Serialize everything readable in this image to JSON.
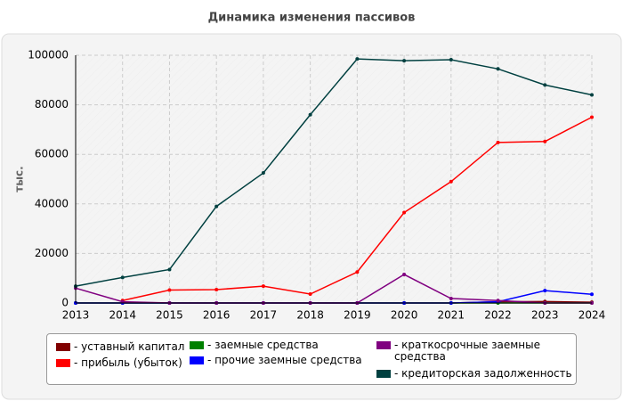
{
  "chart_data": {
    "type": "line",
    "title": "Динамика изменения пассивов",
    "y_label": "тыс.",
    "categories": [
      "2013",
      "2014",
      "2015",
      "2016",
      "2017",
      "2018",
      "2019",
      "2020",
      "2021",
      "2022",
      "2023",
      "2024"
    ],
    "ylim": [
      0,
      100000
    ],
    "yticks": [
      0,
      20000,
      40000,
      60000,
      80000,
      100000
    ],
    "grid": true,
    "series": [
      {
        "name": "уставный капитал",
        "color": "#800000",
        "values": [
          10,
          10,
          10,
          10,
          10,
          10,
          10,
          10,
          10,
          500,
          600,
          300
        ]
      },
      {
        "name": "прибыль (убыток)",
        "color": "#ff0000",
        "values": [
          null,
          1000,
          5200,
          5400,
          6800,
          3600,
          12500,
          36500,
          49000,
          64800,
          65200,
          75000
        ]
      },
      {
        "name": "заемные средства",
        "color": "#008000",
        "values": [
          0,
          0,
          0,
          0,
          0,
          0,
          0,
          0,
          0,
          0,
          0,
          0
        ]
      },
      {
        "name": "прочие заемные средства",
        "color": "#0000ff",
        "values": [
          0,
          0,
          0,
          0,
          0,
          0,
          0,
          0,
          0,
          500,
          5000,
          3500
        ]
      },
      {
        "name": "краткосрочные заемные средства",
        "color": "#800080",
        "values": [
          6000,
          500,
          0,
          0,
          0,
          0,
          0,
          11500,
          1800,
          1000,
          0,
          0
        ]
      },
      {
        "name": "кредиторская задолженность",
        "color": "#004040",
        "values": [
          6800,
          10300,
          13500,
          39000,
          52500,
          76000,
          98500,
          97800,
          98200,
          94500,
          88000,
          84000
        ]
      }
    ]
  }
}
